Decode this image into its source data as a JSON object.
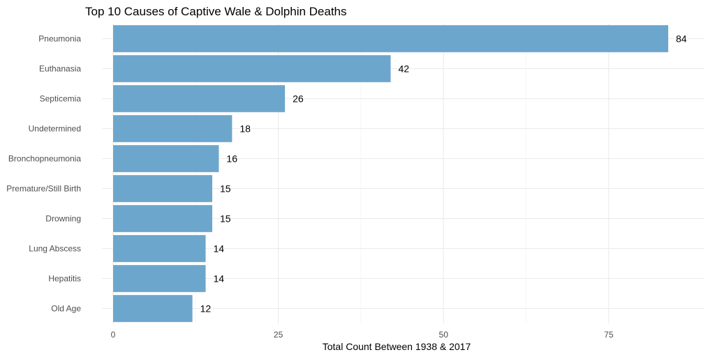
{
  "chart_data": {
    "type": "bar",
    "orientation": "horizontal",
    "title": "Top 10 Causes of Captive Wale & Dolphin Deaths",
    "xlabel": "Total Count Between 1938 & 2017",
    "ylabel": "",
    "categories": [
      "Pneumonia",
      "Euthanasia",
      "Septicemia",
      "Undetermined",
      "Bronchopneumonia",
      "Premature/Still Birth",
      "Drowning",
      "Lung Abscess",
      "Hepatitis",
      "Old Age"
    ],
    "values": [
      84,
      42,
      26,
      18,
      16,
      15,
      15,
      14,
      14,
      12
    ],
    "xlim": [
      0,
      87
    ],
    "x_ticks": [
      0,
      25,
      50,
      75
    ],
    "grid": true,
    "legend": "none",
    "bar_color": "#6ca6cd"
  }
}
